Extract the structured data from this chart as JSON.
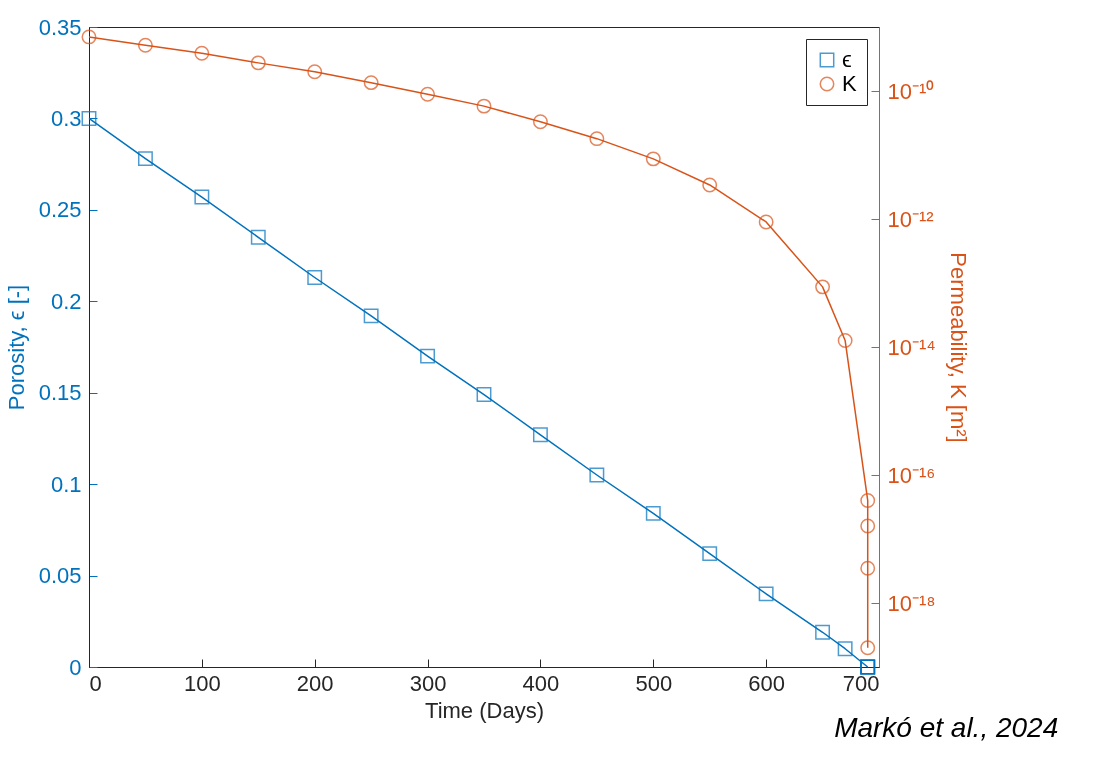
{
  "chart_data": {
    "type": "line",
    "xlabel": "Time (Days)",
    "ylabel": "Porosity, ϵ [-]",
    "y2label": "Permeability, K [m²]",
    "xlim": [
      0,
      700
    ],
    "xticks": [
      0,
      100,
      200,
      300,
      400,
      500,
      600,
      700
    ],
    "ylim": [
      0,
      0.35
    ],
    "yticks": [
      0,
      0.05,
      0.1,
      0.15,
      0.2,
      0.25,
      0.3,
      0.35
    ],
    "y2lim": [
      1e-19,
      1e-09
    ],
    "y2ticks": [
      {
        "value": 1e-18,
        "label": "10⁻¹⁸"
      },
      {
        "value": 1e-16,
        "label": "10⁻¹⁶"
      },
      {
        "value": 1e-14,
        "label": "10⁻¹⁴"
      },
      {
        "value": 1e-12,
        "label": "10⁻¹²"
      },
      {
        "value": 1e-10,
        "label": "10⁻¹⁰"
      }
    ],
    "log": "y2",
    "grid": false,
    "legend": "top right",
    "line_style": "solid",
    "annotations": [
      "Markó et al., 2024"
    ],
    "series": [
      {
        "name": "ϵ",
        "color": "#0072bd",
        "marker": "square",
        "x": [
          0,
          50,
          100,
          150,
          200,
          250,
          300,
          350,
          400,
          450,
          500,
          550,
          600,
          650,
          670,
          690,
          690,
          690,
          690
        ],
        "values": [
          0.3,
          0.278,
          0.257,
          0.235,
          0.213,
          0.192,
          0.17,
          0.149,
          0.127,
          0.105,
          0.084,
          0.062,
          0.04,
          0.019,
          0.01,
          0,
          0,
          0,
          0
        ]
      },
      {
        "name": "K",
        "color": "#d95319",
        "marker": "circle",
        "axis": "y2",
        "x": [
          0,
          50,
          100,
          150,
          200,
          250,
          300,
          350,
          400,
          450,
          500,
          550,
          600,
          650,
          670,
          690,
          690,
          690,
          690
        ],
        "values": [
          7e-10,
          5.2e-10,
          3.9e-10,
          2.75e-10,
          2e-10,
          1.35e-10,
          8.9e-11,
          5.8e-11,
          3.3e-11,
          1.8e-11,
          8.7e-12,
          3.4e-12,
          9e-13,
          8.7e-14,
          1.26e-14,
          4e-17,
          1.6e-17,
          3.5e-18,
          2e-19
        ]
      }
    ]
  }
}
